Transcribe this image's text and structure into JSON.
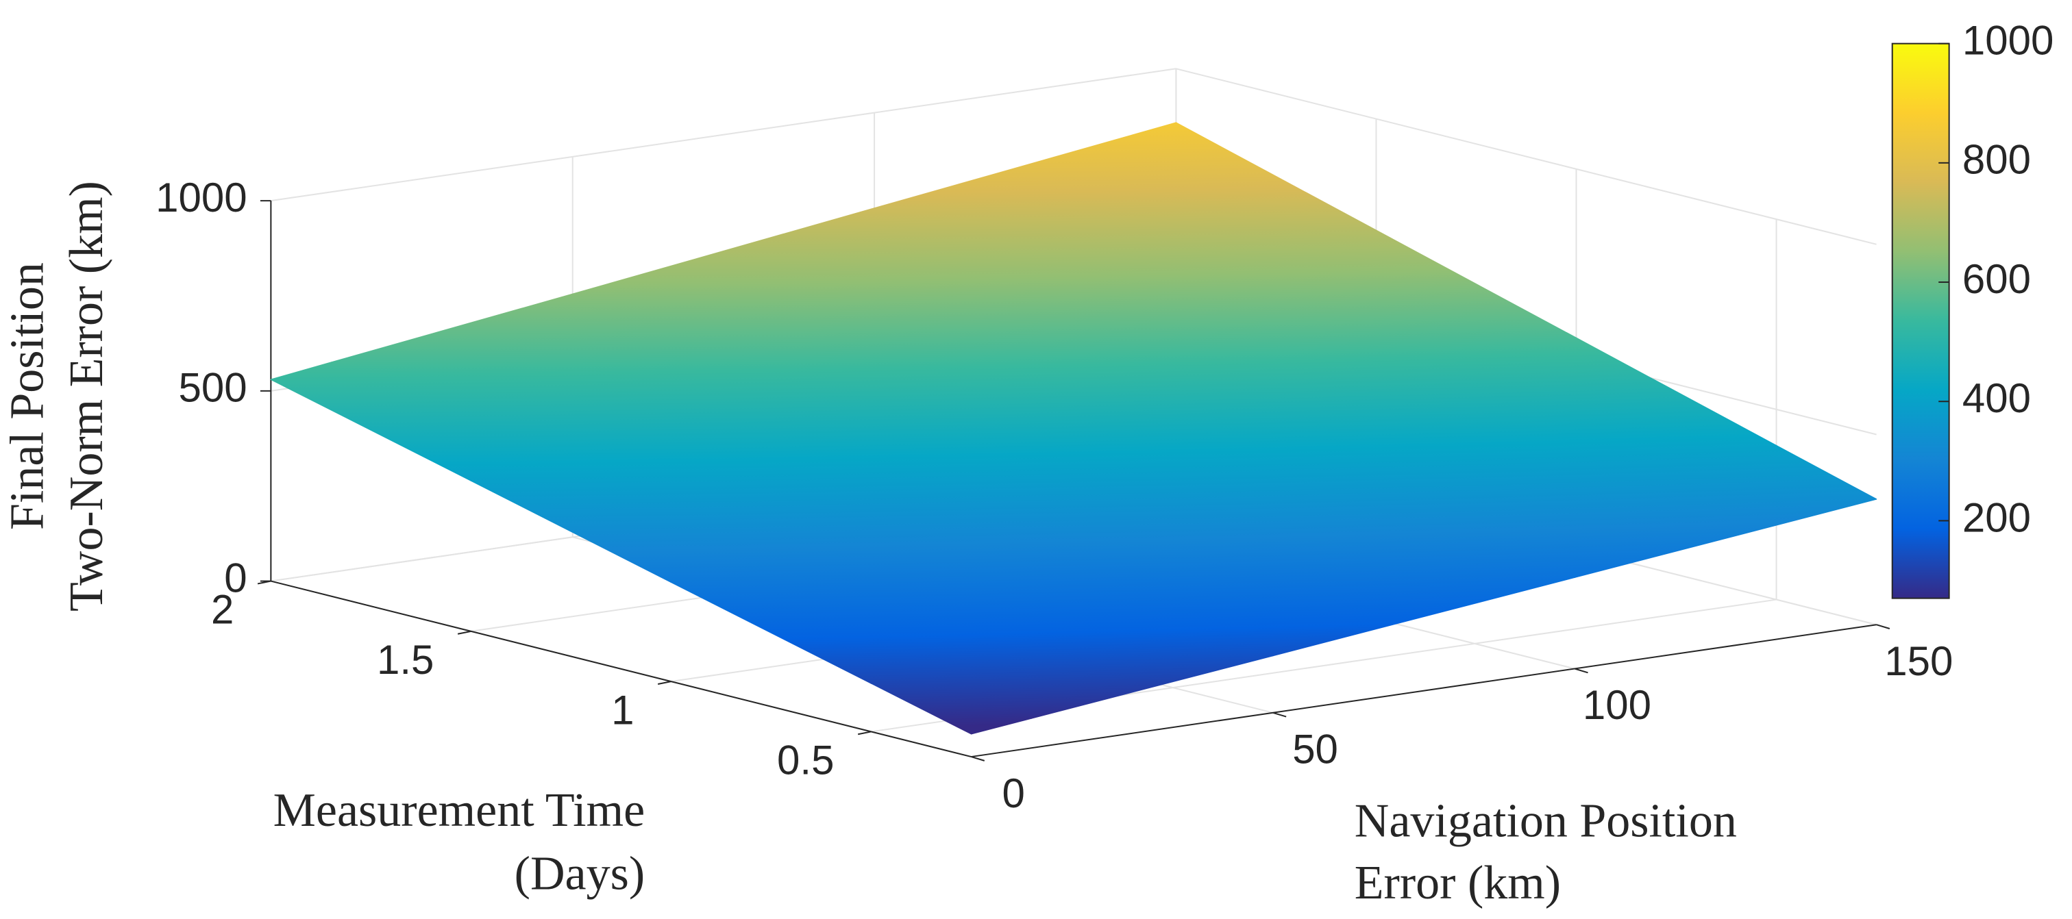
{
  "chart_data": {
    "type": "surface",
    "x_label": [
      "Navigation Position",
      "Error (km)"
    ],
    "y_label": [
      "Measurement Time",
      "(Days)"
    ],
    "z_label": [
      "Final Position",
      "Two-Norm Error (km)"
    ],
    "x": [
      0,
      10,
      50,
      100,
      150
    ],
    "y": [
      0.25,
      0.5,
      1,
      1.5,
      2
    ],
    "z": [
      [
        60,
        78,
        150,
        240,
        330
      ],
      [
        127,
        146,
        220,
        313,
        405
      ],
      [
        261,
        281,
        359,
        458,
        556
      ],
      [
        396,
        417,
        500,
        603,
        707
      ],
      [
        530,
        552,
        639,
        749,
        858
      ]
    ],
    "xlim": [
      0,
      150
    ],
    "xticks": [
      0,
      50,
      100,
      150
    ],
    "ylim": [
      0.25,
      2
    ],
    "yticks": [
      0.5,
      1,
      1.5,
      2
    ],
    "zlim": [
      0,
      1000
    ],
    "zticks": [
      0,
      500,
      1000
    ],
    "clim": [
      70,
      1000
    ],
    "cticks": [
      200,
      400,
      600,
      800,
      1000
    ],
    "colormap": [
      "#352a87",
      "#0363e1",
      "#1485d4",
      "#06a7c6",
      "#38b99e",
      "#92bf73",
      "#d9ba56",
      "#fcce2e",
      "#f9fb0e"
    ],
    "grid": true
  }
}
